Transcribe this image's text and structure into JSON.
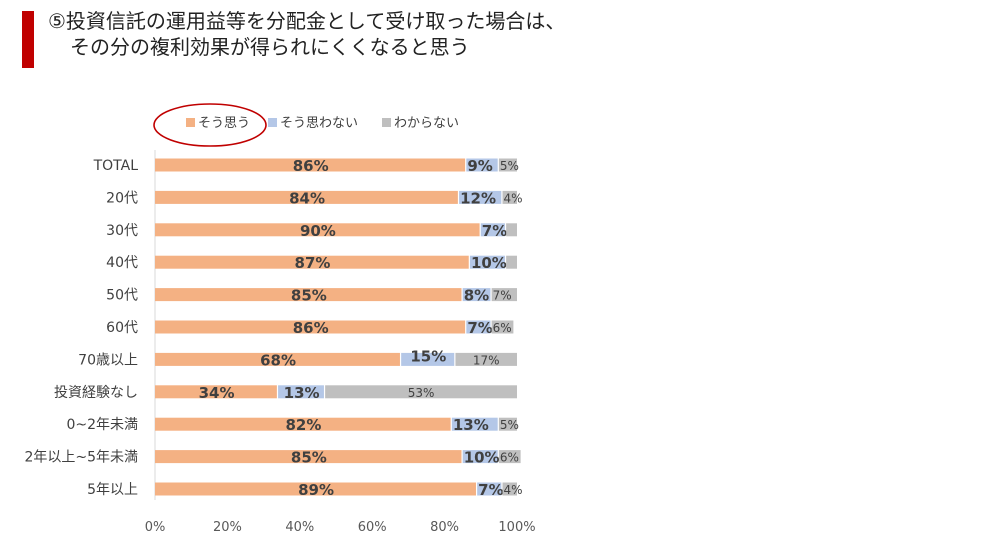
{
  "title": {
    "line1": "⑤投資信託の運用益等を分配金として受け取った場合は、",
    "line2": "その分の複利効果が得られにくくなると思う"
  },
  "chart_data": {
    "type": "bar",
    "orientation": "horizontal",
    "stacked": "percent",
    "categories": [
      "TOTAL",
      "20代",
      "30代",
      "40代",
      "50代",
      "60代",
      "70歳以上",
      "投資経験なし",
      "0~2年未満",
      "2年以上~5年未満",
      "5年以上"
    ],
    "series": [
      {
        "name": "そう思う",
        "color": "#f4b183",
        "values": [
          86,
          84,
          90,
          87,
          85,
          86,
          68,
          34,
          82,
          85,
          89
        ],
        "labels": [
          "86%",
          "84%",
          "90%",
          "87%",
          "85%",
          "86%",
          "68%",
          "34%",
          "82%",
          "85%",
          "89%"
        ]
      },
      {
        "name": "そう思わない",
        "color": "#b4c7e7",
        "values": [
          9,
          12,
          7,
          10,
          8,
          7,
          15,
          13,
          13,
          10,
          7
        ],
        "labels": [
          "9%",
          "12%",
          "7%",
          "10%",
          "8%",
          "7%",
          "15%",
          "13%",
          "13%",
          "10%",
          "7%"
        ]
      },
      {
        "name": "わからない",
        "color": "#bfbfbf",
        "values": [
          5,
          4,
          3,
          3,
          7,
          6,
          17,
          53,
          5,
          6,
          4
        ],
        "labels": [
          "5%",
          "4%",
          "",
          "",
          "7%",
          "6%",
          "17%",
          "53%",
          "5%",
          "6%",
          "4%"
        ]
      }
    ],
    "xlim": [
      0,
      100
    ],
    "xticks": [
      "0%",
      "20%",
      "40%",
      "60%",
      "80%",
      "100%"
    ],
    "legend_position": "top",
    "highlighted_legend_item": "そう思う",
    "highlight_color": "#c00000",
    "grid": false
  }
}
